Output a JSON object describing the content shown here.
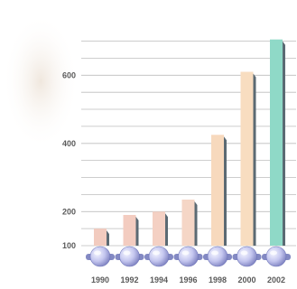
{
  "chart_data": {
    "type": "bar",
    "title": "",
    "xlabel": "",
    "ylabel": "",
    "categories": [
      "1990",
      "1992",
      "1994",
      "1996",
      "1998",
      "2000",
      "2002"
    ],
    "series": [
      {
        "values": [
          150,
          190,
          200,
          235,
          425,
          610,
          705
        ]
      }
    ],
    "ylim": [
      100,
      720
    ],
    "yticks": [
      100,
      200,
      400,
      600
    ],
    "grid": true,
    "legend": "none",
    "colors": {
      "bars": [
        "#f2cbbf",
        "#f3ccc0",
        "#f4d0c3",
        "#f5d6c6",
        "#f7d9bd",
        "#f8ddc0",
        "#8fd9c7"
      ],
      "bar_shadow": "#5b6a73",
      "grid": "#bdbdbd",
      "base_sphere": "#c4c6ef"
    }
  }
}
